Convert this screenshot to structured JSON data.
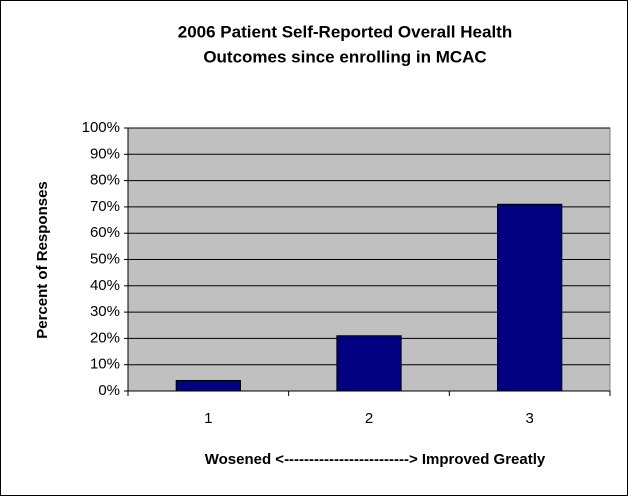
{
  "chart_data": {
    "type": "bar",
    "title": [
      "2006 Patient Self-Reported Overall Health",
      "Outcomes since enrolling in MCAC"
    ],
    "y_label": "Percent of Responses",
    "x_label": "Wosened <-------------------------> Improved Greatly",
    "categories": [
      "1",
      "2",
      "3"
    ],
    "values": [
      4,
      21,
      71
    ],
    "color": "#000080",
    "ylim": [
      0,
      100
    ],
    "yticks": [
      {
        "value": 0,
        "label": "0%"
      },
      {
        "value": 10,
        "label": "10%"
      },
      {
        "value": 20,
        "label": "20%"
      },
      {
        "value": 30,
        "label": "30%"
      },
      {
        "value": 40,
        "label": "40%"
      },
      {
        "value": 50,
        "label": "50%"
      },
      {
        "value": 60,
        "label": "60%"
      },
      {
        "value": 70,
        "label": "70%"
      },
      {
        "value": 80,
        "label": "80%"
      },
      {
        "value": 90,
        "label": "90%"
      },
      {
        "value": 100,
        "label": "100%"
      }
    ],
    "grid": true
  }
}
